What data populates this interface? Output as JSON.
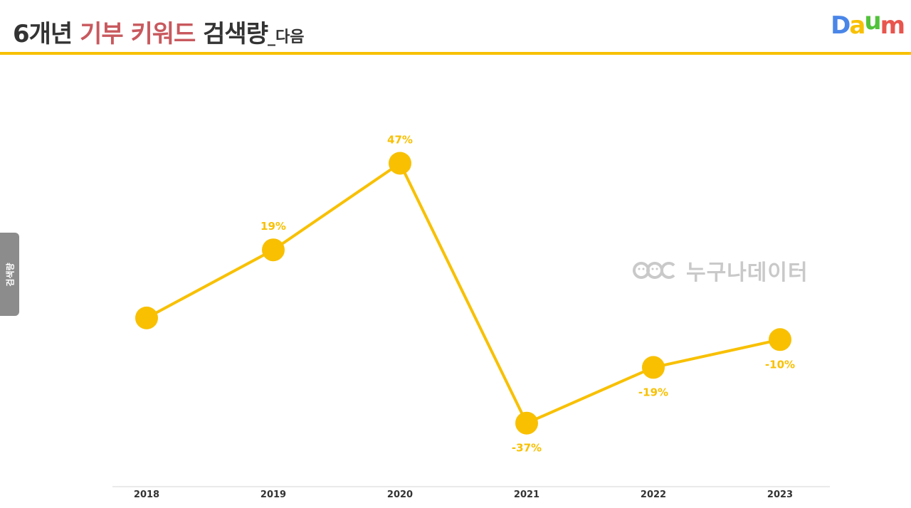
{
  "header": {
    "title_part1": "6개년",
    "title_accent": "기부 키워드",
    "title_part2": "검색량",
    "title_suffix": "_다음"
  },
  "logo": {
    "letters": [
      "D",
      "a",
      "u",
      "m"
    ],
    "colors": [
      "#4a86e8",
      "#f8c000",
      "#52c23a",
      "#e8554d"
    ]
  },
  "side_tab": {
    "label": "검색량"
  },
  "watermark": {
    "text": "누구나데이터",
    "icon": "smiley-faces-icon"
  },
  "chart_data": {
    "type": "line",
    "categories": [
      "2018",
      "2019",
      "2020",
      "2021",
      "2022",
      "2023"
    ],
    "values": [
      -3,
      19,
      47,
      -37,
      -19,
      -10
    ],
    "data_labels": [
      "",
      "19%",
      "47%",
      "-37%",
      "-19%",
      "-10%"
    ],
    "label_positions": [
      "none",
      "above",
      "above",
      "below",
      "below",
      "below"
    ],
    "ylim": [
      -58,
      80
    ],
    "grid": false,
    "line_color": "#f8c000",
    "title": "",
    "xlabel": "",
    "ylabel": ""
  }
}
